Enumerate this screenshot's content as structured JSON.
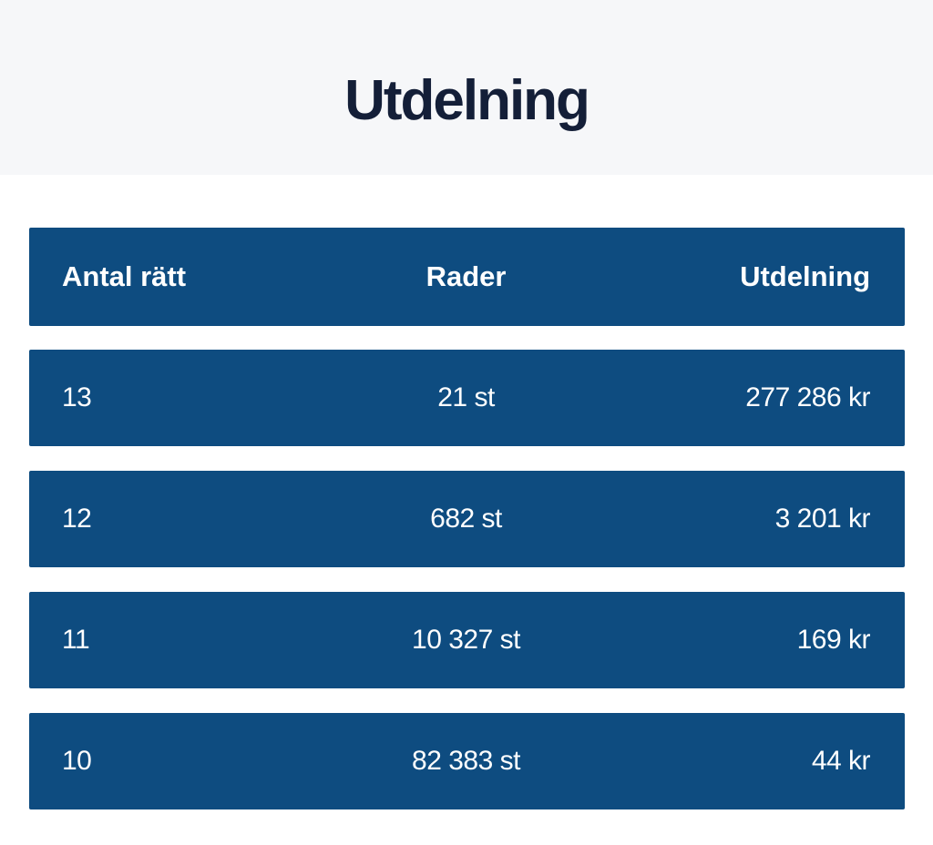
{
  "theme": {
    "table_blue": "#0e4c80",
    "title_navy": "#141f38",
    "hero_bg": "#f6f7f9",
    "page_bg": "#ffffff",
    "row_text": "#ffffff"
  },
  "header": {
    "title": "Utdelning"
  },
  "table": {
    "columns": [
      "Antal rätt",
      "Rader",
      "Utdelning"
    ],
    "rows": [
      {
        "antal_ratt": "13",
        "rader": "21 st",
        "utdelning": "277 286 kr"
      },
      {
        "antal_ratt": "12",
        "rader": "682 st",
        "utdelning": "3 201 kr"
      },
      {
        "antal_ratt": "11",
        "rader": "10 327 st",
        "utdelning": "169 kr"
      },
      {
        "antal_ratt": "10",
        "rader": "82 383 st",
        "utdelning": "44 kr"
      }
    ]
  }
}
